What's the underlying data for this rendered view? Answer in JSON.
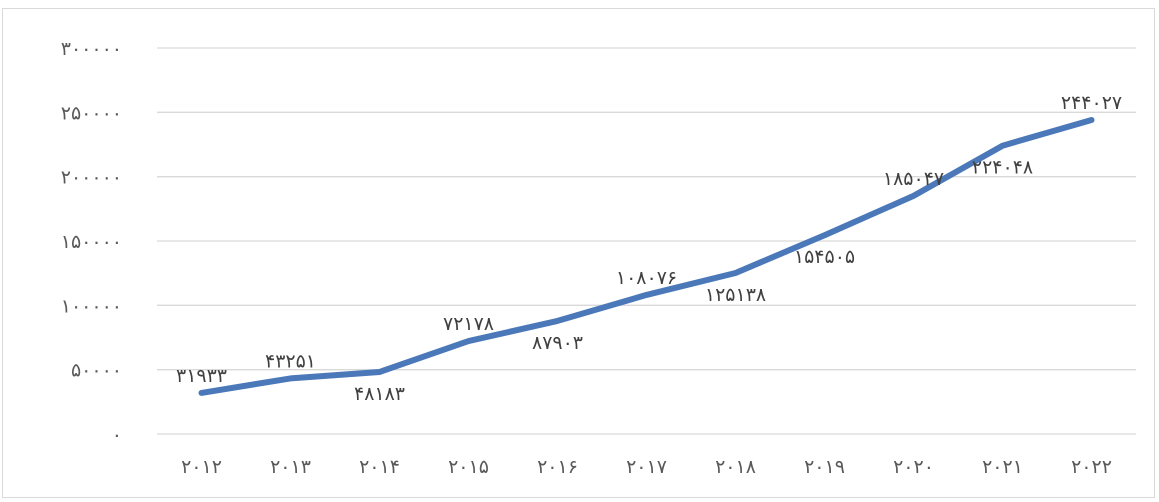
{
  "chart_data": {
    "type": "line",
    "title": "",
    "xlabel": "",
    "ylabel": "",
    "ylim": [
      0,
      300000
    ],
    "grid": true,
    "legend": "none",
    "y_ticks": [
      {
        "value": 0,
        "label": "۰"
      },
      {
        "value": 50000,
        "label": "۵۰۰۰۰"
      },
      {
        "value": 100000,
        "label": "۱۰۰۰۰۰"
      },
      {
        "value": 150000,
        "label": "۱۵۰۰۰۰"
      },
      {
        "value": 200000,
        "label": "۲۰۰۰۰۰"
      },
      {
        "value": 250000,
        "label": "۲۵۰۰۰۰"
      },
      {
        "value": 300000,
        "label": "۳۰۰۰۰۰"
      }
    ],
    "x": [
      2012,
      2013,
      2014,
      2015,
      2016,
      2017,
      2018,
      2019,
      2020,
      2021,
      2022
    ],
    "x_labels": [
      "۲۰۱۲",
      "۲۰۱۳",
      "۲۰۱۴",
      "۲۰۱۵",
      "۲۰۱۶",
      "۲۰۱۷",
      "۲۰۱۸",
      "۲۰۱۹",
      "۲۰۲۰",
      "۲۰۲۱",
      "۲۰۲۲"
    ],
    "series": [
      {
        "values": [
          31933,
          43251,
          48183,
          72178,
          87903,
          108076,
          125138,
          154505,
          185047,
          224048,
          244027
        ],
        "labels": [
          "۳۱۹۳۳",
          "۴۳۲۵۱",
          "۴۸۱۸۳",
          "۷۲۱۷۸",
          "۸۷۹۰۳",
          "۱۰۸۰۷۶",
          "۱۲۵۱۳۸",
          "۱۵۴۵۰۵",
          "۱۸۵۰۴۷",
          "۲۲۴۰۴۸",
          "۲۴۴۰۲۷"
        ],
        "label_positions": [
          "above",
          "above",
          "below",
          "above",
          "below",
          "above",
          "below",
          "below",
          "above",
          "below",
          "above"
        ],
        "color": "#4a78b8"
      }
    ]
  }
}
